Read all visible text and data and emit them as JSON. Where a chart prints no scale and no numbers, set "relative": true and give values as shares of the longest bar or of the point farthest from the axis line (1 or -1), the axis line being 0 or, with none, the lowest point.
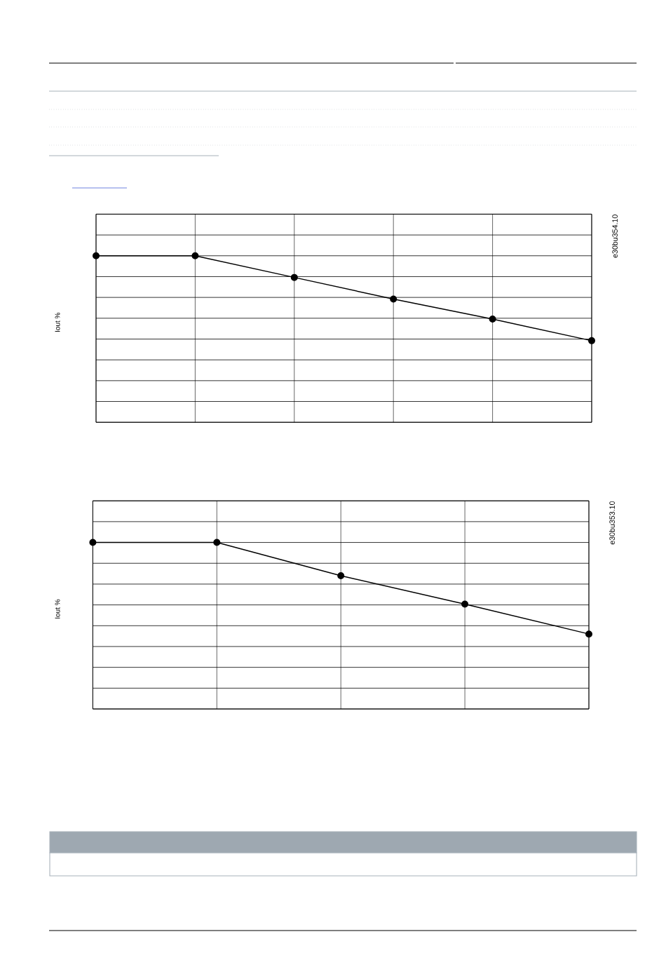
{
  "chart_data": [
    {
      "type": "line",
      "ylabel": "Iout %",
      "annotations": [
        "e30bu354.10"
      ],
      "categories": [
        null,
        null,
        null,
        null,
        null,
        null
      ],
      "relative": true,
      "grid": true,
      "marker": "circle",
      "series": [
        {
          "color": "#000000",
          "values": [
            1,
            1,
            0.87,
            0.74,
            0.62,
            0.49
          ]
        }
      ]
    },
    {
      "type": "line",
      "ylabel": "Iout %",
      "annotations": [
        "e30bu353.10"
      ],
      "categories": [
        null,
        null,
        null,
        null,
        null
      ],
      "relative": true,
      "grid": true,
      "marker": "circle",
      "series": [
        {
          "color": "#000000",
          "values": [
            1,
            1,
            0.8,
            0.63,
            0.45
          ]
        }
      ]
    }
  ]
}
